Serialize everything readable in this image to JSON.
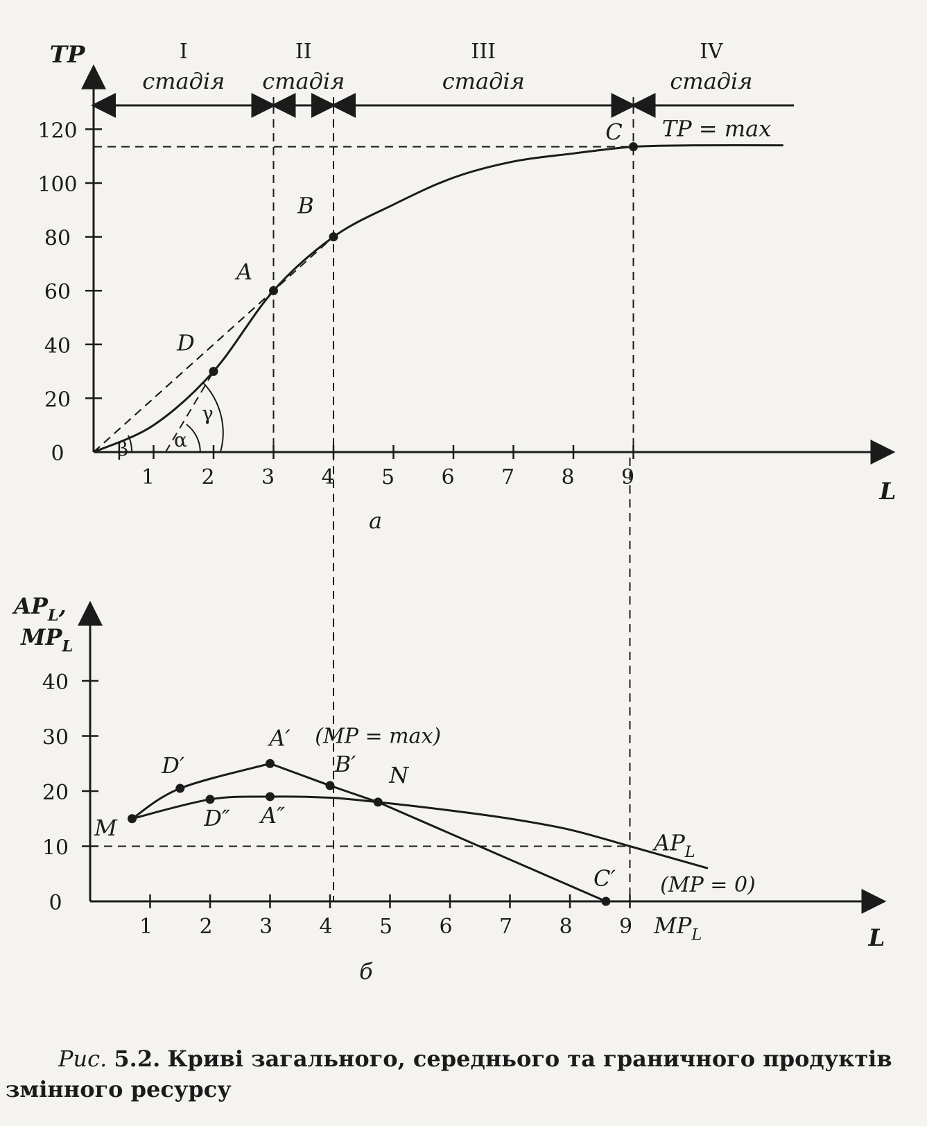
{
  "chart_data": [
    {
      "type": "line",
      "panel_label": "а",
      "ylabel": "TP",
      "xlabel": "L",
      "y_ticks": [
        0,
        20,
        40,
        60,
        80,
        100,
        120
      ],
      "x_ticks": [
        1,
        2,
        3,
        4,
        5,
        6,
        7,
        8,
        9
      ],
      "xlim": [
        0,
        13.3
      ],
      "ylim": [
        0,
        140
      ],
      "stages": [
        {
          "numeral": "I",
          "word": "стадія",
          "from": 0,
          "to": 3
        },
        {
          "numeral": "II",
          "word": "стадія",
          "from": 3,
          "to": 4
        },
        {
          "numeral": "III",
          "word": "стадія",
          "from": 4,
          "to": 9
        },
        {
          "numeral": "IV",
          "word": "стадія",
          "from": 9,
          "to": 11.7
        }
      ],
      "series": [
        {
          "points": [
            [
              0,
              0
            ],
            [
              1,
              10
            ],
            [
              2,
              30
            ],
            [
              3,
              60
            ],
            [
              4,
              80
            ],
            [
              5,
              92
            ],
            [
              6,
              102
            ],
            [
              7,
              108
            ],
            [
              8,
              111
            ],
            [
              9,
              113.5
            ],
            [
              10,
              114
            ],
            [
              11.5,
              114
            ]
          ]
        }
      ],
      "points": [
        {
          "label": "D",
          "x": 2,
          "y": 30
        },
        {
          "label": "A",
          "x": 3,
          "y": 60
        },
        {
          "label": "B",
          "x": 4,
          "y": 80
        },
        {
          "label": "C",
          "x": 9,
          "y": 113.5
        }
      ],
      "max_label": "TP = max",
      "angles": [
        "β",
        "α",
        "γ"
      ]
    },
    {
      "type": "line",
      "panel_label": "б",
      "ylabel_line1": "AP",
      "ylabel_sub1": "L",
      "ylabel_sep": ",",
      "ylabel_line2": "MP",
      "ylabel_sub2": "L",
      "xlabel": "L",
      "y_ticks": [
        0,
        10,
        20,
        30,
        40
      ],
      "x_ticks": [
        1,
        2,
        3,
        4,
        5,
        6,
        7,
        8,
        9
      ],
      "xlim": [
        0,
        13.3
      ],
      "ylim": [
        0,
        50
      ],
      "series": [
        {
          "name_main": "AP",
          "name_sub": "L",
          "points": [
            [
              0.7,
              15
            ],
            [
              2,
              18.5
            ],
            [
              3,
              19
            ],
            [
              4,
              18.8
            ],
            [
              4.8,
              18
            ],
            [
              6,
              16.5
            ],
            [
              7,
              15
            ],
            [
              8,
              13
            ],
            [
              9,
              10
            ],
            [
              10.3,
              6
            ]
          ]
        },
        {
          "name_main": "MP",
          "name_sub": "L",
          "points": [
            [
              0.7,
              15
            ],
            [
              1.5,
              20.5
            ],
            [
              3,
              25
            ],
            [
              4,
              21
            ],
            [
              4.8,
              18
            ],
            [
              8.6,
              0
            ]
          ]
        }
      ],
      "points": [
        {
          "label": "M",
          "x": 0.7,
          "y": 15
        },
        {
          "label": "D′",
          "x": 1.5,
          "y": 20.5
        },
        {
          "label": "D″",
          "x": 2,
          "y": 18.5
        },
        {
          "label": "A′",
          "x": 3,
          "y": 25
        },
        {
          "label": "A″",
          "x": 3,
          "y": 19
        },
        {
          "label": "B′",
          "x": 4,
          "y": 21
        },
        {
          "label": "N",
          "x": 4.8,
          "y": 18
        },
        {
          "label": "C′",
          "x": 8.6,
          "y": 0
        }
      ],
      "annotations": [
        "(MP = max)",
        "(MP = 0)"
      ]
    }
  ],
  "caption": {
    "prefix": "Рис.",
    "number": "5.2.",
    "text": "Криві загального, середнього та граничного продуктів",
    "text2": "змінного ресурсу"
  }
}
